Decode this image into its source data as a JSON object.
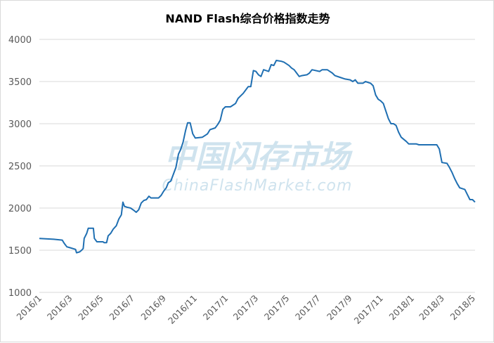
{
  "watermark": {
    "cn": "中国闪存市场",
    "en": "ChinaFlashMarket.com",
    "color": "#cfe3ee"
  },
  "chart_data": {
    "type": "line",
    "title": "NAND Flash综合价格指数走势",
    "xlabel": "",
    "ylabel": "",
    "ylim": [
      1000,
      4000
    ],
    "yticks": [
      1000,
      1500,
      2000,
      2500,
      3000,
      3500,
      4000
    ],
    "xtick_labels": [
      "2016/1",
      "2016/3",
      "2016/5",
      "2016/7",
      "2016/9",
      "2016/11",
      "2017/1",
      "2017/3",
      "2017/5",
      "2017/7",
      "2017/9",
      "2017/11",
      "2018/1",
      "2018/3",
      "2018/5"
    ],
    "grid": "horizontal",
    "line_color": "#1f6fb2",
    "series": [
      {
        "points": [
          [
            "2016/1/1",
            1640
          ],
          [
            "2016/1/29",
            1630
          ],
          [
            "2016/2/15",
            1620
          ],
          [
            "2016/2/19",
            1580
          ],
          [
            "2016/2/24",
            1540
          ],
          [
            "2016/3/1",
            1530
          ],
          [
            "2016/3/12",
            1510
          ],
          [
            "2016/3/14",
            1470
          ],
          [
            "2016/3/20",
            1480
          ],
          [
            "2016/3/24",
            1500
          ],
          [
            "2016/3/27",
            1520
          ],
          [
            "2016/3/29",
            1640
          ],
          [
            "2016/4/3",
            1700
          ],
          [
            "2016/4/6",
            1760
          ],
          [
            "2016/4/16",
            1760
          ],
          [
            "2016/4/18",
            1640
          ],
          [
            "2016/4/23",
            1600
          ],
          [
            "2016/5/5",
            1600
          ],
          [
            "2016/5/7",
            1590
          ],
          [
            "2016/5/12",
            1590
          ],
          [
            "2016/5/15",
            1670
          ],
          [
            "2016/5/20",
            1700
          ],
          [
            "2016/5/25",
            1750
          ],
          [
            "2016/5/31",
            1790
          ],
          [
            "2016/6/5",
            1870
          ],
          [
            "2016/6/10",
            1920
          ],
          [
            "2016/6/13",
            2070
          ],
          [
            "2016/6/16",
            2020
          ],
          [
            "2016/6/21",
            2010
          ],
          [
            "2016/6/28",
            2000
          ],
          [
            "2016/7/5",
            1970
          ],
          [
            "2016/7/9",
            1950
          ],
          [
            "2016/7/14",
            1980
          ],
          [
            "2016/7/19",
            2060
          ],
          [
            "2016/7/24",
            2090
          ],
          [
            "2016/7/29",
            2100
          ],
          [
            "2016/8/3",
            2140
          ],
          [
            "2016/8/7",
            2120
          ],
          [
            "2016/8/22",
            2120
          ],
          [
            "2016/8/27",
            2150
          ],
          [
            "2016/9/1",
            2200
          ],
          [
            "2016/9/6",
            2240
          ],
          [
            "2016/9/10",
            2300
          ],
          [
            "2016/9/15",
            2320
          ],
          [
            "2016/9/20",
            2400
          ],
          [
            "2016/9/25",
            2480
          ],
          [
            "2016/9/30",
            2640
          ],
          [
            "2016/10/4",
            2690
          ],
          [
            "2016/10/9",
            2780
          ],
          [
            "2016/10/14",
            2920
          ],
          [
            "2016/10/18",
            3010
          ],
          [
            "2016/10/23",
            3010
          ],
          [
            "2016/10/28",
            2880
          ],
          [
            "2016/11/2",
            2830
          ],
          [
            "2016/11/16",
            2840
          ],
          [
            "2016/11/21",
            2860
          ],
          [
            "2016/11/26",
            2880
          ],
          [
            "2016/12/1",
            2930
          ],
          [
            "2016/12/11",
            2950
          ],
          [
            "2016/12/16",
            2990
          ],
          [
            "2016/12/21",
            3040
          ],
          [
            "2016/12/26",
            3170
          ],
          [
            "2016/12/31",
            3200
          ],
          [
            "2017/1/10",
            3200
          ],
          [
            "2017/1/15",
            3220
          ],
          [
            "2017/1/20",
            3240
          ],
          [
            "2017/1/25",
            3300
          ],
          [
            "2017/1/30",
            3330
          ],
          [
            "2017/2/4",
            3360
          ],
          [
            "2017/2/9",
            3400
          ],
          [
            "2017/2/14",
            3440
          ],
          [
            "2017/2/19",
            3440
          ],
          [
            "2017/2/24",
            3630
          ],
          [
            "2017/3/1",
            3620
          ],
          [
            "2017/3/6",
            3580
          ],
          [
            "2017/3/11",
            3560
          ],
          [
            "2017/3/16",
            3640
          ],
          [
            "2017/3/26",
            3620
          ],
          [
            "2017/3/31",
            3700
          ],
          [
            "2017/4/5",
            3690
          ],
          [
            "2017/4/10",
            3750
          ],
          [
            "2017/4/20",
            3740
          ],
          [
            "2017/4/25",
            3730
          ],
          [
            "2017/5/5",
            3690
          ],
          [
            "2017/5/10",
            3660
          ],
          [
            "2017/5/15",
            3640
          ],
          [
            "2017/5/20",
            3600
          ],
          [
            "2017/5/25",
            3560
          ],
          [
            "2017/5/30",
            3570
          ],
          [
            "2017/6/9",
            3580
          ],
          [
            "2017/6/14",
            3600
          ],
          [
            "2017/6/19",
            3640
          ],
          [
            "2017/7/4",
            3620
          ],
          [
            "2017/7/9",
            3640
          ],
          [
            "2017/7/19",
            3640
          ],
          [
            "2017/7/24",
            3620
          ],
          [
            "2017/7/29",
            3600
          ],
          [
            "2017/8/3",
            3570
          ],
          [
            "2017/8/13",
            3550
          ],
          [
            "2017/8/23",
            3530
          ],
          [
            "2017/9/2",
            3520
          ],
          [
            "2017/9/7",
            3500
          ],
          [
            "2017/9/12",
            3520
          ],
          [
            "2017/9/17",
            3480
          ],
          [
            "2017/9/27",
            3480
          ],
          [
            "2017/10/2",
            3500
          ],
          [
            "2017/10/12",
            3480
          ],
          [
            "2017/10/17",
            3450
          ],
          [
            "2017/10/22",
            3340
          ],
          [
            "2017/10/27",
            3290
          ],
          [
            "2017/11/1",
            3270
          ],
          [
            "2017/11/6",
            3240
          ],
          [
            "2017/11/11",
            3150
          ],
          [
            "2017/11/16",
            3060
          ],
          [
            "2017/11/21",
            3000
          ],
          [
            "2017/11/26",
            3000
          ],
          [
            "2017/12/1",
            2980
          ],
          [
            "2017/12/6",
            2900
          ],
          [
            "2017/12/11",
            2840
          ],
          [
            "2017/12/21",
            2790
          ],
          [
            "2017/12/26",
            2760
          ],
          [
            "2018/1/10",
            2760
          ],
          [
            "2018/1/15",
            2750
          ],
          [
            "2018/2/9",
            2750
          ],
          [
            "2018/2/19",
            2750
          ],
          [
            "2018/2/24",
            2700
          ],
          [
            "2018/3/1",
            2540
          ],
          [
            "2018/3/11",
            2530
          ],
          [
            "2018/3/16",
            2480
          ],
          [
            "2018/3/21",
            2420
          ],
          [
            "2018/3/26",
            2350
          ],
          [
            "2018/3/31",
            2290
          ],
          [
            "2018/4/5",
            2240
          ],
          [
            "2018/4/15",
            2220
          ],
          [
            "2018/4/20",
            2160
          ],
          [
            "2018/4/25",
            2100
          ],
          [
            "2018/4/30",
            2100
          ],
          [
            "2018/5/5",
            2070
          ]
        ]
      }
    ]
  }
}
